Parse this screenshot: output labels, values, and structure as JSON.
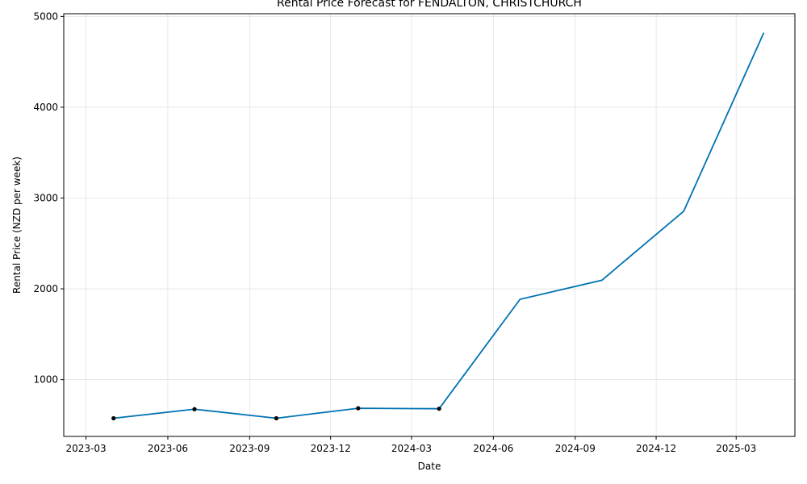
{
  "chart_data": {
    "type": "line",
    "title": "Rental Price Forecast for FENDALTON, CHRISTCHURCH",
    "xlabel": "Date",
    "ylabel": "Rental Price (NZD per week)",
    "x_ticks": [
      "2023-03",
      "2023-06",
      "2023-09",
      "2023-12",
      "2024-03",
      "2024-06",
      "2024-09",
      "2024-12",
      "2025-03"
    ],
    "y_ticks": [
      1000,
      2000,
      3000,
      4000,
      5000
    ],
    "xlim": [
      "2023-02-04",
      "2025-05-06"
    ],
    "ylim": [
      375,
      5030
    ],
    "grid": true,
    "series": [
      {
        "name": "",
        "color": "#0072B2",
        "x": [
          "2023-04-01",
          "2023-07-01",
          "2023-10-01",
          "2024-01-01",
          "2024-04-01",
          "2024-07-01",
          "2024-10-01",
          "2025-01-01",
          "2025-04-01"
        ],
        "values": [
          575,
          675,
          575,
          685,
          680,
          1885,
          2095,
          2855,
          4820
        ]
      }
    ],
    "observed_points": {
      "color": "#000000",
      "x": [
        "2023-04-01",
        "2023-07-01",
        "2023-10-01",
        "2024-01-01",
        "2024-04-01"
      ],
      "values": [
        575,
        675,
        575,
        685,
        680
      ]
    }
  }
}
